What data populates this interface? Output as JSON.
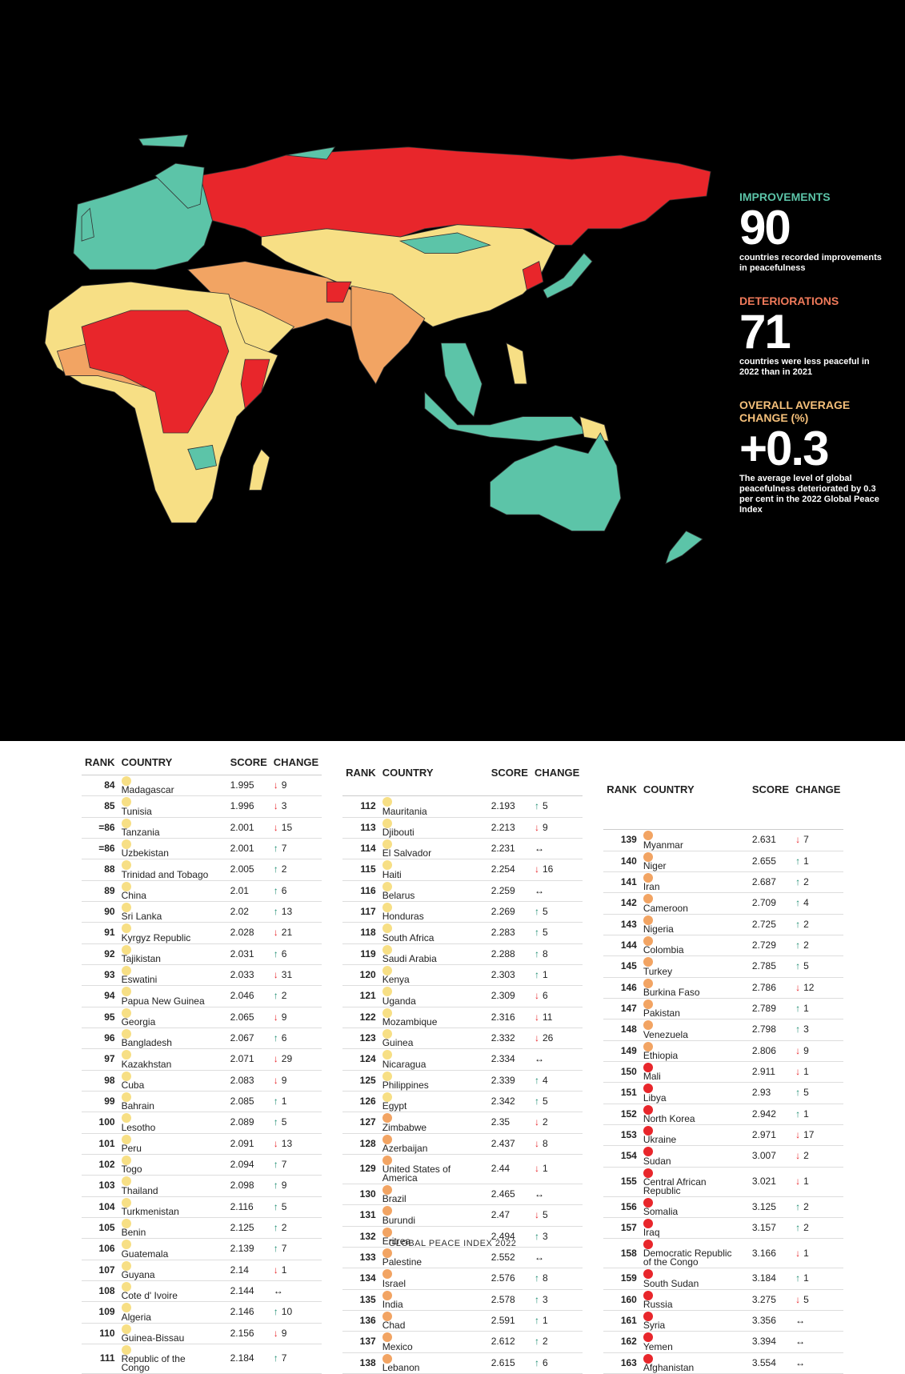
{
  "stats": [
    {
      "label": "IMPROVEMENTS",
      "value": 90,
      "text": "countries recorded improvements in peacefulness",
      "color": "#5cc4a8"
    },
    {
      "label": "DETERIORATIONS",
      "value": 71,
      "text": "countries were less peaceful in 2022 than in 2021",
      "color": "#f07a5a"
    },
    {
      "label": "OVERALL AVERAGE CHANGE (%)",
      "value": "+0.3",
      "text": "The average level of global peacefulness deteriorated by 0.3 per cent in the 2022 Global Peace Index",
      "color": "#f5c07a"
    }
  ],
  "table": {
    "headers": [
      "RANK",
      "COUNTRY",
      "SCORE",
      "CHANGE"
    ],
    "columns": [
      {
        "rows": [
          [
            84,
            "Madagascar",
            1.995,
            "#f7df85",
            "down",
            9
          ],
          [
            85,
            "Tunisia",
            1.996,
            "#f7df85",
            "down",
            3
          ],
          [
            "=86",
            "Tanzania",
            2.001,
            "#f7df85",
            "down",
            15
          ],
          [
            "=86",
            "Uzbekistan",
            2.001,
            "#f7df85",
            "up",
            7
          ],
          [
            88,
            "Trinidad and Tobago",
            2.005,
            "#f7df85",
            "up",
            2
          ],
          [
            89,
            "China",
            2.01,
            "#f7df85",
            "up",
            6
          ],
          [
            90,
            "Sri Lanka",
            2.02,
            "#f7df85",
            "up",
            13
          ],
          [
            91,
            "Kyrgyz Republic",
            2.028,
            "#f7df85",
            "down",
            21
          ],
          [
            92,
            "Tajikistan",
            2.031,
            "#f7df85",
            "up",
            6
          ],
          [
            93,
            "Eswatini",
            2.033,
            "#f7df85",
            "down",
            31
          ],
          [
            94,
            "Papua New Guinea",
            2.046,
            "#f7df85",
            "up",
            2
          ],
          [
            95,
            "Georgia",
            2.065,
            "#f7df85",
            "down",
            9
          ],
          [
            96,
            "Bangladesh",
            2.067,
            "#f7df85",
            "up",
            6
          ],
          [
            97,
            "Kazakhstan",
            2.071,
            "#f7df85",
            "down",
            29
          ],
          [
            98,
            "Cuba",
            2.083,
            "#f7df85",
            "down",
            9
          ],
          [
            99,
            "Bahrain",
            2.085,
            "#f7df85",
            "up",
            1
          ],
          [
            100,
            "Lesotho",
            2.089,
            "#f7df85",
            "up",
            5
          ],
          [
            101,
            "Peru",
            2.091,
            "#f7df85",
            "down",
            13
          ],
          [
            102,
            "Togo",
            2.094,
            "#f7df85",
            "up",
            7
          ],
          [
            103,
            "Thailand",
            2.098,
            "#f7df85",
            "up",
            9
          ],
          [
            104,
            "Turkmenistan",
            2.116,
            "#f7df85",
            "up",
            5
          ],
          [
            105,
            "Benin",
            2.125,
            "#f7df85",
            "up",
            2
          ],
          [
            106,
            "Guatemala",
            2.139,
            "#f7df85",
            "up",
            7
          ],
          [
            107,
            "Guyana",
            2.14,
            "#f7df85",
            "down",
            1
          ],
          [
            108,
            "Cote d' Ivoire",
            2.144,
            "#f7df85",
            "same"
          ],
          [
            109,
            "Algeria",
            2.146,
            "#f7df85",
            "up",
            10
          ],
          [
            110,
            "Guinea-Bissau",
            2.156,
            "#f7df85",
            "down",
            9
          ],
          [
            111,
            "Republic of the Congo",
            2.184,
            "#f7df85",
            "up",
            7
          ]
        ]
      },
      {
        "rows": [
          [
            112,
            "Mauritania",
            2.193,
            "#f7df85",
            "up",
            5
          ],
          [
            113,
            "Djibouti",
            2.213,
            "#f7df85",
            "down",
            9
          ],
          [
            114,
            "El Salvador",
            2.231,
            "#f7df85",
            "same"
          ],
          [
            115,
            "Haiti",
            2.254,
            "#f7df85",
            "down",
            16
          ],
          [
            116,
            "Belarus",
            2.259,
            "#f7df85",
            "same"
          ],
          [
            117,
            "Honduras",
            2.269,
            "#f7df85",
            "up",
            5
          ],
          [
            118,
            "South Africa",
            2.283,
            "#f7df85",
            "up",
            5
          ],
          [
            119,
            "Saudi Arabia",
            2.288,
            "#f7df85",
            "up",
            8
          ],
          [
            120,
            "Kenya",
            2.303,
            "#f7df85",
            "up",
            1
          ],
          [
            121,
            "Uganda",
            2.309,
            "#f7df85",
            "down",
            6
          ],
          [
            122,
            "Mozambique",
            2.316,
            "#f7df85",
            "down",
            11
          ],
          [
            123,
            "Guinea",
            2.332,
            "#f7df85",
            "down",
            26
          ],
          [
            124,
            "Nicaragua",
            2.334,
            "#f7df85",
            "same"
          ],
          [
            125,
            "Philippines",
            2.339,
            "#f7df85",
            "up",
            4
          ],
          [
            126,
            "Egypt",
            2.342,
            "#f7df85",
            "up",
            5
          ],
          [
            127,
            "Zimbabwe",
            2.35,
            "#f2a463",
            "down",
            2
          ],
          [
            128,
            "Azerbaijan",
            2.437,
            "#f2a463",
            "down",
            8
          ],
          [
            129,
            "United States of America",
            2.44,
            "#f2a463",
            "down",
            1
          ],
          [
            130,
            "Brazil",
            2.465,
            "#f2a463",
            "same"
          ],
          [
            131,
            "Burundi",
            2.47,
            "#f2a463",
            "down",
            5
          ],
          [
            132,
            "Eritrea",
            2.494,
            "#f2a463",
            "up",
            3
          ],
          [
            133,
            "Palestine",
            2.552,
            "#f2a463",
            "same"
          ],
          [
            134,
            "Israel",
            2.576,
            "#f2a463",
            "up",
            8
          ],
          [
            135,
            "India",
            2.578,
            "#f2a463",
            "up",
            3
          ],
          [
            136,
            "Chad",
            2.591,
            "#f2a463",
            "up",
            1
          ],
          [
            137,
            "Mexico",
            2.612,
            "#f2a463",
            "up",
            2
          ],
          [
            138,
            "Lebanon",
            2.615,
            "#f2a463",
            "up",
            6
          ]
        ]
      },
      {
        "rows": [
          [
            139,
            "Myanmar",
            2.631,
            "#f2a463",
            "down",
            7
          ],
          [
            140,
            "Niger",
            2.655,
            "#f2a463",
            "up",
            1
          ],
          [
            141,
            "Iran",
            2.687,
            "#f2a463",
            "up",
            2
          ],
          [
            142,
            "Cameroon",
            2.709,
            "#f2a463",
            "up",
            4
          ],
          [
            143,
            "Nigeria",
            2.725,
            "#f2a463",
            "up",
            2
          ],
          [
            144,
            "Colombia",
            2.729,
            "#f2a463",
            "up",
            2
          ],
          [
            145,
            "Turkey",
            2.785,
            "#f2a463",
            "up",
            5
          ],
          [
            146,
            "Burkina Faso",
            2.786,
            "#f2a463",
            "down",
            12
          ],
          [
            147,
            "Pakistan",
            2.789,
            "#f2a463",
            "up",
            1
          ],
          [
            148,
            "Venezuela",
            2.798,
            "#f2a463",
            "up",
            3
          ],
          [
            149,
            "Ethiopia",
            2.806,
            "#f2a463",
            "down",
            9
          ],
          [
            150,
            "Mali",
            2.911,
            "#e8262b",
            "down",
            1
          ],
          [
            151,
            "Libya",
            2.93,
            "#e8262b",
            "up",
            5
          ],
          [
            152,
            "North Korea",
            2.942,
            "#e8262b",
            "up",
            1
          ],
          [
            153,
            "Ukraine",
            2.971,
            "#e8262b",
            "down",
            17
          ],
          [
            154,
            "Sudan",
            3.007,
            "#e8262b",
            "down",
            2
          ],
          [
            155,
            "Central African Republic",
            3.021,
            "#e8262b",
            "down",
            1
          ],
          [
            156,
            "Somalia",
            3.125,
            "#e8262b",
            "up",
            2
          ],
          [
            157,
            "Iraq",
            3.157,
            "#e8262b",
            "up",
            2
          ],
          [
            158,
            "Democratic Republic of the Congo",
            3.166,
            "#e8262b",
            "down",
            1
          ],
          [
            159,
            "South Sudan",
            3.184,
            "#e8262b",
            "up",
            1
          ],
          [
            160,
            "Russia",
            3.275,
            "#e8262b",
            "down",
            5
          ],
          [
            161,
            "Syria",
            3.356,
            "#e8262b",
            "same"
          ],
          [
            162,
            "Yemen",
            3.394,
            "#e8262b",
            "same"
          ],
          [
            163,
            "Afghanistan",
            3.554,
            "#e8262b",
            "same"
          ]
        ]
      }
    ]
  },
  "footer": "GLOBAL PEACE INDEX 2022"
}
